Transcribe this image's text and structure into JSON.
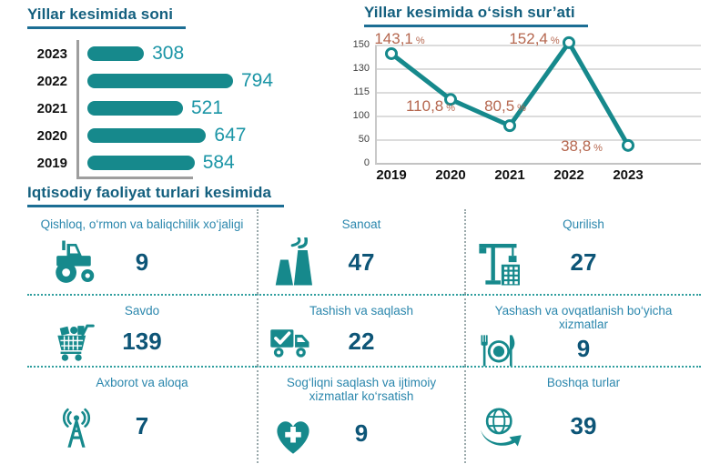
{
  "colors": {
    "teal": "#16898c",
    "title_blue": "#14607f",
    "label_blue": "#2b87ad",
    "number_dark": "#0d5577",
    "bar_value_teal": "#1b95a6",
    "percent_terracotta": "#b5674f",
    "axis_gray": "#9e9e9e",
    "gridline_gray": "#dcdcdc"
  },
  "bar_chart": {
    "title": "Yillar kesimida soni",
    "categories": [
      "2023",
      "2022",
      "2021",
      "2020",
      "2019"
    ],
    "values": [
      308,
      794,
      521,
      647,
      584
    ],
    "max_value": 794
  },
  "line_chart": {
    "title": "Yillar kesimida o‘sish sur’ati",
    "x": [
      "2019",
      "2020",
      "2021",
      "2022",
      "2023"
    ],
    "values": [
      143.1,
      110.8,
      80.5,
      152.4,
      38.8
    ],
    "point_labels": [
      "143,1",
      "110,8",
      "80,5",
      "152,4",
      "38,8"
    ],
    "percent_sign": "%",
    "yticks": [
      0,
      50,
      100,
      115,
      130,
      150
    ],
    "ytick_labels": [
      "150",
      "130",
      "115",
      "100",
      "50",
      "0"
    ]
  },
  "sectors": {
    "title": "Iqtisodiy faoliyat turlari kesimida",
    "items": [
      {
        "label": "Qishloq, o‘rmon va baliqchilik xo‘jaligi",
        "value": 9,
        "icon": "tractor-icon"
      },
      {
        "label": "Sanoat",
        "value": 47,
        "icon": "factory-icon"
      },
      {
        "label": "Qurilish",
        "value": 27,
        "icon": "crane-icon"
      },
      {
        "label": "Savdo",
        "value": 139,
        "icon": "shopping-cart-icon"
      },
      {
        "label": "Tashish va saqlash",
        "value": 22,
        "icon": "delivery-truck-icon"
      },
      {
        "label": "Yashash va ovqatlanish bo‘yicha xizmatlar",
        "value": 9,
        "icon": "restaurant-icon"
      },
      {
        "label": "Axborot va aloqa",
        "value": 7,
        "icon": "broadcast-tower-icon"
      },
      {
        "label": "Sog‘liqni saqlash va ijtimoiy xizmatlar ko‘rsatish",
        "value": 9,
        "icon": "heart-cross-icon"
      },
      {
        "label": "Boshqa turlar",
        "value": 39,
        "icon": "globe-arrow-icon"
      }
    ]
  },
  "chart_data": [
    {
      "type": "bar",
      "orientation": "horizontal",
      "title": "Yillar kesimida soni",
      "categories": [
        "2023",
        "2022",
        "2021",
        "2020",
        "2019"
      ],
      "values": [
        308,
        794,
        521,
        647,
        584
      ],
      "xlabel": "",
      "ylabel": "",
      "xlim": [
        0,
        794
      ],
      "grid": false,
      "bar_color": "#16898c",
      "value_labels": true
    },
    {
      "type": "line",
      "title": "Yillar kesimida o‘sish sur’ati",
      "x": [
        "2019",
        "2020",
        "2021",
        "2022",
        "2023"
      ],
      "values": [
        143.1,
        110.8,
        80.5,
        152.4,
        38.8
      ],
      "point_labels": [
        "143,1 %",
        "110,8 %",
        "80,5 %",
        "152,4 %",
        "38,8 %"
      ],
      "yticks": [
        0,
        50,
        100,
        115,
        130,
        150
      ],
      "grid": true,
      "line_color": "#16898c",
      "marker": "open-circle"
    },
    {
      "type": "table",
      "title": "Iqtisodiy faoliyat turlari kesimida",
      "categories": [
        "Qishloq, o‘rmon va baliqchilik xo‘jaligi",
        "Sanoat",
        "Qurilish",
        "Savdo",
        "Tashish va saqlash",
        "Yashash va ovqatlanish bo‘yicha xizmatlar",
        "Axborot va aloqa",
        "Sog‘liqni saqlash va ijtimoiy xizmatlar ko‘rsatish",
        "Boshqa turlar"
      ],
      "values": [
        9,
        47,
        27,
        139,
        22,
        9,
        7,
        9,
        39
      ]
    }
  ]
}
